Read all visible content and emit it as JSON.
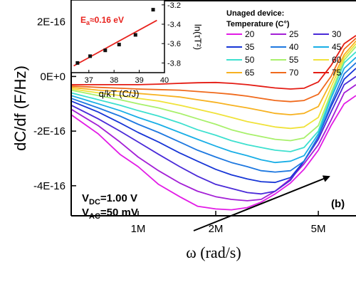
{
  "chart_data": [
    {
      "type": "line",
      "panel_label": "(b)",
      "xlabel": "ω (rad/s)",
      "ylabel": "dC/df (F/Hz)",
      "x_scale": "log",
      "xlim": [
        550000,
        7000000
      ],
      "ylim": [
        -5.1e-16,
        2.8e-16
      ],
      "x_tick_values": [
        1000000,
        2000000,
        5000000
      ],
      "x_tick_labels": [
        "1M",
        "2M",
        "5M"
      ],
      "y_tick_values": [
        2e-16,
        0,
        -2e-16,
        -4e-16
      ],
      "y_tick_labels": [
        "2E-16",
        "0E+0",
        "-2E-16",
        "-4E-16"
      ],
      "legend_title_lines": [
        "Unaged device:",
        "Temperature (C°)"
      ],
      "annotations": {
        "vdc_prefix": "V",
        "vdc_sub": "DC",
        "vdc_value": "=1.00 V",
        "vac_prefix": "V",
        "vac_sub": "AC",
        "vac_value": "=50 mV"
      },
      "series": [
        {
          "name": "20",
          "color": "#e21be6",
          "x": [
            550000,
            700000,
            850000,
            1000000,
            1200000,
            1450000,
            1700000,
            2000000,
            2300000,
            2650000,
            3000000,
            3400000,
            3900000,
            4400000,
            5000000,
            5600000,
            6300000,
            7000000
          ],
          "y": [
            -1.4e-16,
            -2.1e-16,
            -2.85e-16,
            -3.3e-16,
            -3.95e-16,
            -4.4e-16,
            -4.75e-16,
            -4.85e-16,
            -4.88e-16,
            -4.8e-16,
            -4.6e-16,
            -4.3e-16,
            -3.9e-16,
            -3.4e-16,
            -2.7e-16,
            -1.8e-16,
            -1e-16,
            -7e-17
          ]
        },
        {
          "name": "25",
          "color": "#a31fd6",
          "x": [
            550000,
            700000,
            850000,
            1000000,
            1200000,
            1450000,
            1700000,
            2000000,
            2300000,
            2650000,
            3000000,
            3400000,
            3900000,
            4400000,
            5000000,
            5600000,
            6300000,
            7000000
          ],
          "y": [
            -1.2e-16,
            -1.8e-16,
            -2.4e-16,
            -2.95e-16,
            -3.45e-16,
            -3.9e-16,
            -4.2e-16,
            -4.4e-16,
            -4.5e-16,
            -4.55e-16,
            -4.5e-16,
            -4.2e-16,
            -3.75e-16,
            -3.2e-16,
            -2.5e-16,
            -1.6e-16,
            -6e-17,
            -3e-17
          ]
        },
        {
          "name": "30",
          "color": "#4a2ad8",
          "x": [
            550000,
            700000,
            850000,
            1000000,
            1200000,
            1450000,
            1700000,
            2000000,
            2300000,
            2650000,
            3000000,
            3400000,
            3900000,
            4400000,
            5000000,
            5600000,
            6300000,
            7000000
          ],
          "y": [
            -1.05e-16,
            -1.55e-16,
            -2e-16,
            -2.4e-16,
            -2.85e-16,
            -3.3e-16,
            -3.65e-16,
            -3.95e-16,
            -4.1e-16,
            -4.25e-16,
            -4.3e-16,
            -4.2e-16,
            -3.8e-16,
            -3.1e-16,
            -2.3e-16,
            -1.3e-16,
            -3e-17,
            0
          ]
        },
        {
          "name": "35",
          "color": "#1736d6",
          "x": [
            550000,
            700000,
            850000,
            1000000,
            1200000,
            1450000,
            1700000,
            2000000,
            2300000,
            2650000,
            3000000,
            3400000,
            3900000,
            4400000,
            5000000,
            5600000,
            6300000,
            7000000
          ],
          "y": [
            -9e-17,
            -1.3e-16,
            -1.7e-16,
            -2.05e-16,
            -2.4e-16,
            -2.8e-16,
            -3.1e-16,
            -3.4e-16,
            -3.6e-16,
            -3.75e-16,
            -3.85e-16,
            -3.88e-16,
            -3.7e-16,
            -3.1e-16,
            -2.2e-16,
            -1.1e-16,
            -1e-17,
            3e-17
          ]
        },
        {
          "name": "40",
          "color": "#1e78e0",
          "x": [
            550000,
            700000,
            850000,
            1000000,
            1200000,
            1450000,
            1700000,
            2000000,
            2300000,
            2650000,
            3000000,
            3400000,
            3900000,
            4400000,
            5000000,
            5600000,
            6300000,
            7000000
          ],
          "y": [
            -8e-17,
            -1.15e-16,
            -1.45e-16,
            -1.75e-16,
            -2.05e-16,
            -2.4e-16,
            -2.7e-16,
            -2.95e-16,
            -3.15e-16,
            -3.3e-16,
            -3.45e-16,
            -3.5e-16,
            -3.45e-16,
            -3.1e-16,
            -2.2e-16,
            -1e-16,
            1e-17,
            5e-17
          ]
        },
        {
          "name": "45",
          "color": "#19aee6",
          "x": [
            550000,
            700000,
            850000,
            1000000,
            1200000,
            1450000,
            1700000,
            2000000,
            2300000,
            2650000,
            3000000,
            3400000,
            3900000,
            4400000,
            5000000,
            5600000,
            6300000,
            7000000
          ],
          "y": [
            -7e-17,
            -1e-16,
            -1.25e-16,
            -1.5e-16,
            -1.75e-16,
            -2.05e-16,
            -2.3e-16,
            -2.55e-16,
            -2.75e-16,
            -2.9e-16,
            -3.05e-16,
            -3.15e-16,
            -3.1e-16,
            -2.9e-16,
            -2.1e-16,
            -8e-17,
            3e-17,
            7e-17
          ]
        },
        {
          "name": "50",
          "color": "#3ee0cf",
          "x": [
            550000,
            700000,
            850000,
            1000000,
            1200000,
            1450000,
            1700000,
            2000000,
            2300000,
            2650000,
            3000000,
            3400000,
            3900000,
            4400000,
            5000000,
            5600000,
            6300000,
            7000000
          ],
          "y": [
            -6e-17,
            -8.5e-17,
            -1.05e-16,
            -1.25e-16,
            -1.45e-16,
            -1.7e-16,
            -1.95e-16,
            -2.15e-16,
            -2.35e-16,
            -2.5e-16,
            -2.6e-16,
            -2.7e-16,
            -2.75e-16,
            -2.6e-16,
            -2e-16,
            -7e-17,
            5e-17,
            9e-17
          ]
        },
        {
          "name": "55",
          "color": "#a8f06b",
          "x": [
            550000,
            700000,
            850000,
            1000000,
            1200000,
            1450000,
            1700000,
            2000000,
            2300000,
            2650000,
            3000000,
            3400000,
            3900000,
            4400000,
            5000000,
            5600000,
            6300000,
            7000000
          ],
          "y": [
            -5e-17,
            -7e-17,
            -8.5e-17,
            -1e-16,
            -1.15e-16,
            -1.35e-16,
            -1.55e-16,
            -1.75e-16,
            -1.95e-16,
            -2.1e-16,
            -2.2e-16,
            -2.3e-16,
            -2.35e-16,
            -2.25e-16,
            -1.8e-16,
            -6e-17,
            6e-17,
            1.1e-16
          ]
        },
        {
          "name": "60",
          "color": "#f0e23a",
          "x": [
            550000,
            700000,
            850000,
            1000000,
            1200000,
            1450000,
            1700000,
            2000000,
            2300000,
            2650000,
            3000000,
            3400000,
            3900000,
            4400000,
            5000000,
            5600000,
            6300000,
            7000000
          ],
          "y": [
            -4.5e-17,
            -6e-17,
            -7e-17,
            -8e-17,
            -9e-17,
            -1.05e-16,
            -1.2e-16,
            -1.35e-16,
            -1.5e-16,
            -1.65e-16,
            -1.75e-16,
            -1.85e-16,
            -1.9e-16,
            -1.85e-16,
            -1.5e-16,
            -4e-17,
            7e-17,
            1.2e-16
          ]
        },
        {
          "name": "65",
          "color": "#f7b221",
          "x": [
            550000,
            700000,
            850000,
            1000000,
            1200000,
            1450000,
            1700000,
            2000000,
            2300000,
            2650000,
            3000000,
            3400000,
            3900000,
            4400000,
            5000000,
            5600000,
            6300000,
            7000000
          ],
          "y": [
            -4e-17,
            -5e-17,
            -5.5e-17,
            -6.2e-17,
            -6.8e-17,
            -7.5e-17,
            -8.5e-17,
            -9.5e-17,
            -1.05e-16,
            -1.15e-16,
            -1.25e-16,
            -1.35e-16,
            -1.4e-16,
            -1.35e-16,
            -1.1e-16,
            -2e-17,
            8e-17,
            1.3e-16
          ]
        },
        {
          "name": "70",
          "color": "#f06a1c",
          "x": [
            550000,
            700000,
            850000,
            1000000,
            1200000,
            1450000,
            1700000,
            2000000,
            2300000,
            2650000,
            3000000,
            3400000,
            3900000,
            4400000,
            5000000,
            5600000,
            6300000,
            7000000
          ],
          "y": [
            -3.5e-17,
            -4e-17,
            -4.3e-17,
            -4.6e-17,
            -4.8e-17,
            -5e-17,
            -5.5e-17,
            -6e-17,
            -6.5e-17,
            -7.2e-17,
            -8e-17,
            -8.8e-17,
            -9.2e-17,
            -8.8e-17,
            -6.5e-17,
            0,
            1e-16,
            1.4e-16
          ]
        },
        {
          "name": "75",
          "color": "#e41c14",
          "x": [
            550000,
            700000,
            850000,
            1000000,
            1200000,
            1450000,
            1700000,
            2000000,
            2300000,
            2650000,
            3000000,
            3400000,
            3900000,
            4400000,
            5000000,
            5600000,
            6300000,
            7000000
          ],
          "y": [
            -3e-17,
            -3e-17,
            -3e-17,
            -3e-17,
            -2.8e-17,
            -2.5e-17,
            -2.3e-17,
            -2.2e-17,
            -2.5e-17,
            -3e-17,
            -3.6e-17,
            -4.2e-17,
            -4.6e-17,
            -4.3e-17,
            -2e-17,
            4e-17,
            1.2e-16,
            1.5e-16
          ]
        }
      ]
    },
    {
      "type": "scatter",
      "xlabel": "q/kT (C/J)",
      "ylabel": "ln(τT²)",
      "xlim": [
        36.3,
        40
      ],
      "ylim": [
        -3.9,
        -3.15
      ],
      "x_tick_values": [
        37,
        38,
        39,
        40
      ],
      "x_tick_labels": [
        "37",
        "38",
        "39",
        "40"
      ],
      "y_tick_values": [
        -3.2,
        -3.4,
        -3.6,
        -3.8
      ],
      "y_tick_labels": [
        "-3.2",
        "-3.4",
        "-3.6",
        "-3.8"
      ],
      "annotation": {
        "prefix": "E",
        "sub": "a",
        "value": "≈0.16 eV"
      },
      "points": {
        "x": [
          36.55,
          37.05,
          37.65,
          38.2,
          38.85,
          39.55
        ],
        "y": [
          -3.8,
          -3.73,
          -3.67,
          -3.61,
          -3.51,
          -3.25
        ]
      },
      "fit": {
        "x": [
          36.4,
          39.7
        ],
        "y": [
          -3.83,
          -3.36
        ],
        "color": "#e8231e"
      }
    }
  ]
}
